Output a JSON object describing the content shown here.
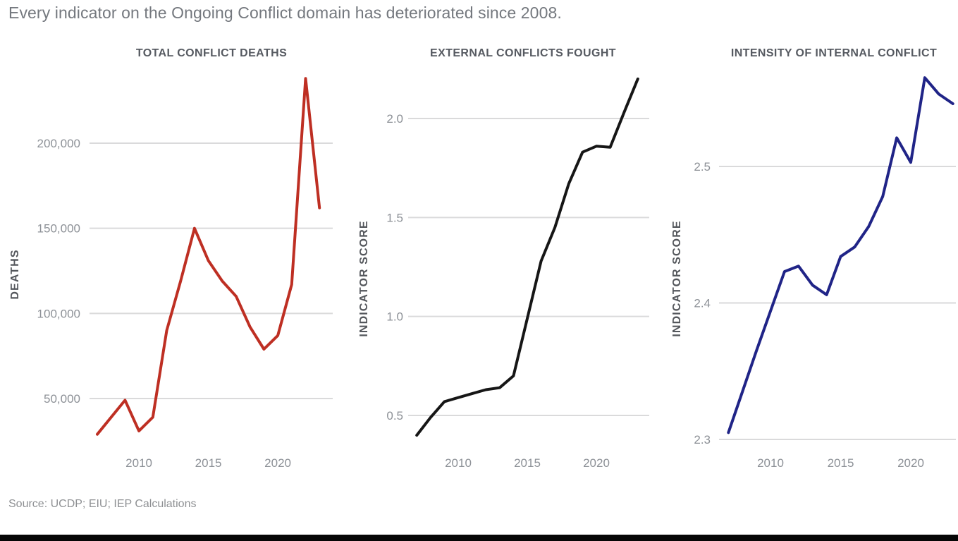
{
  "header": {
    "title": "Every indicator on the Ongoing Conflict domain has deteriorated since 2008."
  },
  "footer": {
    "source": "Source: UCDP; EIU; IEP Calculations"
  },
  "chart_data": [
    {
      "type": "line",
      "title": "TOTAL CONFLICT DEATHS",
      "ylabel": "DEATHS",
      "color": "#be2f23",
      "x": [
        2007,
        2008,
        2009,
        2010,
        2011,
        2012,
        2013,
        2014,
        2015,
        2016,
        2017,
        2018,
        2019,
        2020,
        2021,
        2022,
        2023
      ],
      "values": [
        29000,
        39000,
        49000,
        31000,
        39000,
        90000,
        119000,
        150000,
        131000,
        119000,
        110000,
        92000,
        79000,
        87000,
        117000,
        238000,
        162000
      ],
      "xticks": {
        "values": [
          2010,
          2015,
          2020
        ],
        "labels": [
          "2010",
          "2015",
          "2020"
        ]
      },
      "yticks": {
        "values": [
          200000,
          150000,
          100000,
          50000
        ],
        "labels": [
          "200,000",
          "150,000",
          "100,000",
          "50,000"
        ]
      },
      "xlim": [
        2007,
        2023
      ],
      "ylim": [
        20000,
        240000
      ],
      "grid": "horizontal",
      "legend": "none"
    },
    {
      "type": "line",
      "title": "EXTERNAL CONFLICTS FOUGHT",
      "ylabel": "INDICATOR SCORE",
      "color": "#161616",
      "x": [
        2007,
        2008,
        2009,
        2010,
        2011,
        2012,
        2013,
        2014,
        2015,
        2016,
        2017,
        2018,
        2019,
        2020,
        2021,
        2022,
        2023
      ],
      "values": [
        0.4,
        0.49,
        0.57,
        0.59,
        0.61,
        0.63,
        0.64,
        0.7,
        0.99,
        1.28,
        1.45,
        1.67,
        1.83,
        1.86,
        1.855,
        2.03,
        2.2
      ],
      "xticks": {
        "values": [
          2010,
          2015,
          2020
        ],
        "labels": [
          "2010",
          "2015",
          "2020"
        ]
      },
      "yticks": {
        "values": [
          2.0,
          1.5,
          1.0,
          0.5
        ],
        "labels": [
          "2.0",
          "1.5",
          "1.0",
          "0.5"
        ]
      },
      "xlim": [
        2007,
        2023
      ],
      "ylim": [
        0.35,
        2.25
      ],
      "grid": "horizontal",
      "legend": "none"
    },
    {
      "type": "line",
      "title": "INTENSITY OF INTERNAL CONFLICT",
      "ylabel": "INDICATOR SCORE",
      "color": "#202487",
      "x": [
        2007,
        2008,
        2009,
        2010,
        2011,
        2012,
        2013,
        2014,
        2015,
        2016,
        2017,
        2018,
        2019,
        2020,
        2021,
        2022,
        2023
      ],
      "values": [
        2.305,
        2.335,
        2.365,
        2.394,
        2.423,
        2.427,
        2.413,
        2.406,
        2.434,
        2.441,
        2.456,
        2.478,
        2.521,
        2.503,
        2.565,
        2.553,
        2.546
      ],
      "xticks": {
        "values": [
          2010,
          2015,
          2020
        ],
        "labels": [
          "2010",
          "2015",
          "2020"
        ]
      },
      "yticks": {
        "values": [
          2.5,
          2.4,
          2.3
        ],
        "labels": [
          "2.5",
          "2.4",
          "2.3"
        ]
      },
      "xlim": [
        2007,
        2023
      ],
      "ylim": [
        2.29,
        2.58
      ],
      "grid": "horizontal",
      "legend": "none"
    }
  ]
}
